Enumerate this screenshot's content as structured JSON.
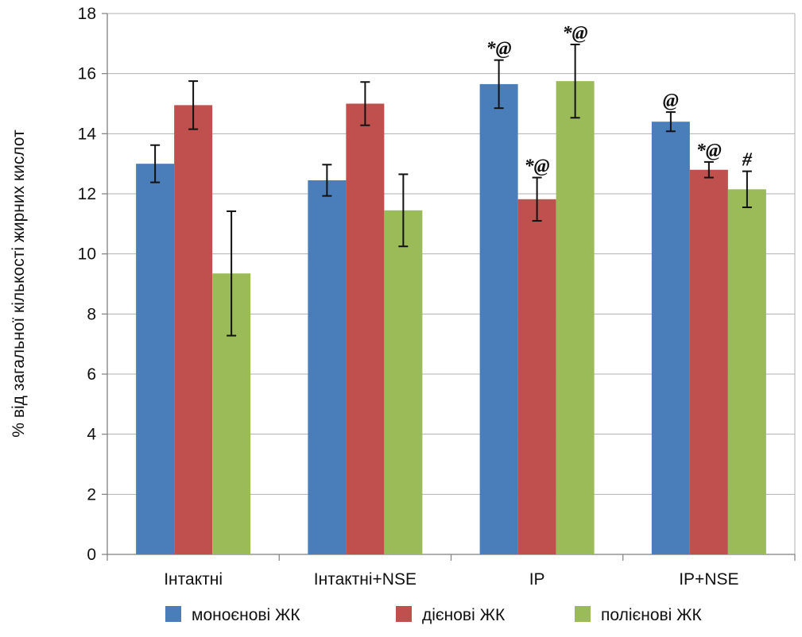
{
  "chart_data": {
    "type": "bar",
    "title": "",
    "xlabel": "",
    "ylabel": "% від загальної кількості жирних кислот",
    "ylim": [
      0,
      18
    ],
    "yticks": [
      0,
      2,
      4,
      6,
      8,
      10,
      12,
      14,
      16,
      18
    ],
    "grid": true,
    "legend_position": "bottom",
    "categories": [
      "Інтактні",
      "Інтактні+NSE",
      "IP",
      "IP+NSE"
    ],
    "series": [
      {
        "name": "моноєнові ЖК",
        "color": "#4a7ebb",
        "values": [
          13.0,
          12.45,
          15.65,
          14.4
        ],
        "errors": [
          0.62,
          0.52,
          0.8,
          0.32
        ],
        "annotations": [
          "",
          "",
          "*@",
          "@"
        ]
      },
      {
        "name": "дієнові ЖК",
        "color": "#c0504d",
        "values": [
          14.95,
          15.0,
          11.82,
          12.8
        ],
        "errors": [
          0.8,
          0.72,
          0.72,
          0.26
        ],
        "annotations": [
          "",
          "",
          "*@",
          "*@"
        ]
      },
      {
        "name": "полієнові ЖК",
        "color": "#9bbb59",
        "values": [
          9.35,
          11.45,
          15.75,
          12.15
        ],
        "errors": [
          2.07,
          1.2,
          1.22,
          0.6
        ],
        "annotations": [
          "",
          "",
          "*@",
          "#"
        ]
      }
    ]
  }
}
